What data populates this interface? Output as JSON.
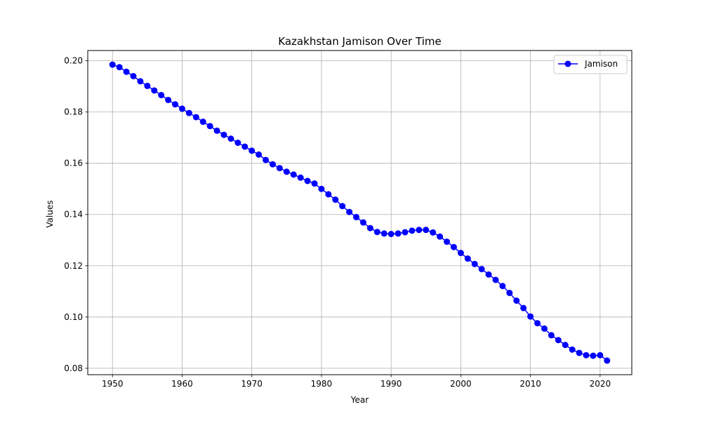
{
  "chart_data": {
    "type": "line",
    "title": "Kazakhstan Jamison Over Time",
    "xlabel": "Year",
    "ylabel": "Values",
    "xlim": [
      1946.45,
      2024.55
    ],
    "ylim": [
      0.0775,
      0.204
    ],
    "xticks": [
      1950,
      1960,
      1970,
      1980,
      1990,
      2000,
      2010,
      2020
    ],
    "xtick_labels": [
      "1950",
      "1960",
      "1970",
      "1980",
      "1990",
      "2000",
      "2010",
      "2020"
    ],
    "yticks": [
      0.08,
      0.1,
      0.12,
      0.14,
      0.16,
      0.18,
      0.2
    ],
    "ytick_labels": [
      "0.08",
      "0.10",
      "0.12",
      "0.14",
      "0.16",
      "0.18",
      "0.20"
    ],
    "grid": true,
    "legend_position": "top-right",
    "series": [
      {
        "name": "Jamison",
        "color": "#0000ff",
        "marker": "circle",
        "x": [
          1950,
          1951,
          1952,
          1953,
          1954,
          1955,
          1956,
          1957,
          1958,
          1959,
          1960,
          1961,
          1962,
          1963,
          1964,
          1965,
          1966,
          1967,
          1968,
          1969,
          1970,
          1971,
          1972,
          1973,
          1974,
          1975,
          1976,
          1977,
          1978,
          1979,
          1980,
          1981,
          1982,
          1983,
          1984,
          1985,
          1986,
          1987,
          1988,
          1989,
          1990,
          1991,
          1992,
          1993,
          1994,
          1995,
          1996,
          1997,
          1998,
          1999,
          2000,
          2001,
          2002,
          2003,
          2004,
          2005,
          2006,
          2007,
          2008,
          2009,
          2010,
          2011,
          2012,
          2013,
          2014,
          2015,
          2016,
          2017,
          2018,
          2019,
          2020,
          2021
        ],
        "y": [
          0.1985,
          0.1975,
          0.1957,
          0.194,
          0.192,
          0.1902,
          0.1884,
          0.1866,
          0.1847,
          0.183,
          0.1813,
          0.1796,
          0.178,
          0.1762,
          0.1745,
          0.1727,
          0.1711,
          0.1696,
          0.168,
          0.1665,
          0.1649,
          0.1634,
          0.1613,
          0.1596,
          0.1581,
          0.1567,
          0.1556,
          0.1544,
          0.1531,
          0.1521,
          0.15,
          0.1479,
          0.1458,
          0.1433,
          0.141,
          0.139,
          0.1369,
          0.1347,
          0.1332,
          0.1326,
          0.1324,
          0.1326,
          0.1331,
          0.1337,
          0.134,
          0.134,
          0.133,
          0.1314,
          0.1294,
          0.1273,
          0.125,
          0.1228,
          0.1207,
          0.1187,
          0.1166,
          0.1145,
          0.1121,
          0.1094,
          0.1064,
          0.1035,
          0.1002,
          0.0976,
          0.0955,
          0.0929,
          0.091,
          0.0891,
          0.0873,
          0.086,
          0.0851,
          0.0849,
          0.0851,
          0.083
        ]
      }
    ]
  }
}
